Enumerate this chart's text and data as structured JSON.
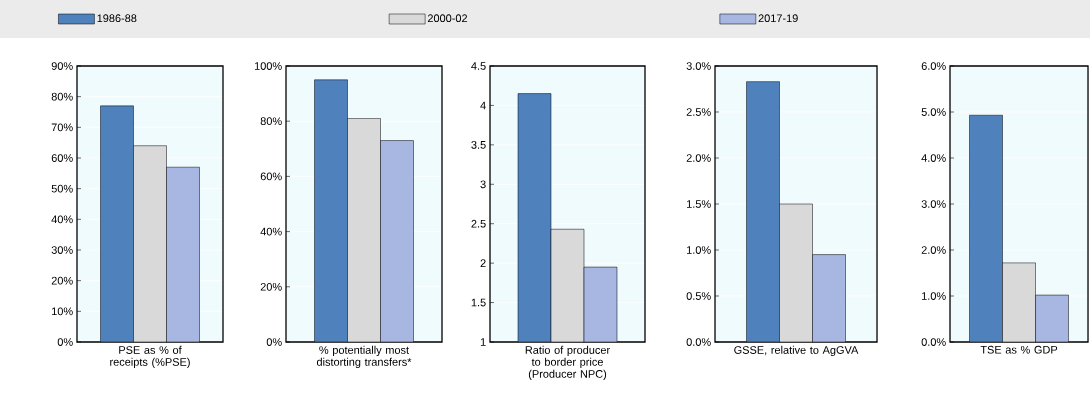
{
  "chart_data": [
    {
      "type": "bar",
      "categories": [
        "PSE as % of receipts (%PSE)"
      ],
      "series": [
        {
          "name": "1986-88",
          "color": "#4f81bd",
          "values": [
            77
          ]
        },
        {
          "name": "2000-02",
          "color": "#d9d9d9",
          "values": [
            64
          ]
        },
        {
          "name": "2017-19",
          "color": "#a7b7e2",
          "values": [
            57
          ]
        }
      ],
      "ylim": [
        0,
        90
      ],
      "yticks": [
        {
          "value": 0,
          "label": "0%"
        },
        {
          "value": 10,
          "label": "10%"
        },
        {
          "value": 20,
          "label": "20%"
        },
        {
          "value": 30,
          "label": "30%"
        },
        {
          "value": 40,
          "label": "40%"
        },
        {
          "value": 50,
          "label": "50%"
        },
        {
          "value": 60,
          "label": "60%"
        },
        {
          "value": 70,
          "label": "70%"
        },
        {
          "value": 80,
          "label": "80%"
        },
        {
          "value": 90,
          "label": "90%"
        }
      ],
      "grid": "y",
      "legend": "top"
    },
    {
      "type": "bar",
      "categories": [
        "% potentially most distorting transfers*"
      ],
      "series": [
        {
          "color": "#4f81bd",
          "values": [
            95
          ]
        },
        {
          "color": "#d9d9d9",
          "values": [
            81
          ]
        },
        {
          "color": "#a7b7e2",
          "values": [
            73
          ]
        }
      ],
      "ylim": [
        0,
        100
      ],
      "yticks": [
        {
          "value": 0,
          "label": "0%"
        },
        {
          "value": 20,
          "label": "20%"
        },
        {
          "value": 40,
          "label": "40%"
        },
        {
          "value": 60,
          "label": "60%"
        },
        {
          "value": 80,
          "label": "80%"
        },
        {
          "value": 100,
          "label": "100%"
        }
      ],
      "grid": "y"
    },
    {
      "type": "bar",
      "categories": [
        "Ratio of producer to border price (Producer NPC)"
      ],
      "series": [
        {
          "color": "#4f81bd",
          "values": [
            4.15
          ]
        },
        {
          "color": "#d9d9d9",
          "values": [
            2.43
          ]
        },
        {
          "color": "#a7b7e2",
          "values": [
            1.95
          ]
        }
      ],
      "ylim": [
        1,
        4.5
      ],
      "yticks": [
        1,
        1.5,
        2,
        2.5,
        3,
        3.5,
        4,
        4.5
      ],
      "grid": "y"
    },
    {
      "type": "bar",
      "categories": [
        "GSSE, relative to AgGVA"
      ],
      "series": [
        {
          "color": "#4f81bd",
          "values": [
            2.83
          ]
        },
        {
          "color": "#d9d9d9",
          "values": [
            1.5
          ]
        },
        {
          "color": "#a7b7e2",
          "values": [
            0.95
          ]
        }
      ],
      "ylim": [
        0,
        3
      ],
      "yticks": [
        {
          "value": 0,
          "label": "0.0%"
        },
        {
          "value": 0.5,
          "label": "0.5%"
        },
        {
          "value": 1,
          "label": "1.0%"
        },
        {
          "value": 1.5,
          "label": "1.5%"
        },
        {
          "value": 2,
          "label": "2.0%"
        },
        {
          "value": 2.5,
          "label": "2.5%"
        },
        {
          "value": 3,
          "label": "3.0%"
        }
      ],
      "grid": "y"
    },
    {
      "type": "bar",
      "categories": [
        "TSE as % GDP"
      ],
      "series": [
        {
          "color": "#4f81bd",
          "values": [
            4.93
          ]
        },
        {
          "color": "#d9d9d9",
          "values": [
            1.72
          ]
        },
        {
          "color": "#a7b7e2",
          "values": [
            1.02
          ]
        }
      ],
      "ylim": [
        0,
        6
      ],
      "yticks": [
        {
          "value": 0,
          "label": "0.0%"
        },
        {
          "value": 1,
          "label": "1.0%"
        },
        {
          "value": 2,
          "label": "2.0%"
        },
        {
          "value": 3,
          "label": "3.0%"
        },
        {
          "value": 4,
          "label": "4.0%"
        },
        {
          "value": 5,
          "label": "5.0%"
        },
        {
          "value": 6,
          "label": "6.0%"
        }
      ],
      "grid": "y"
    }
  ]
}
